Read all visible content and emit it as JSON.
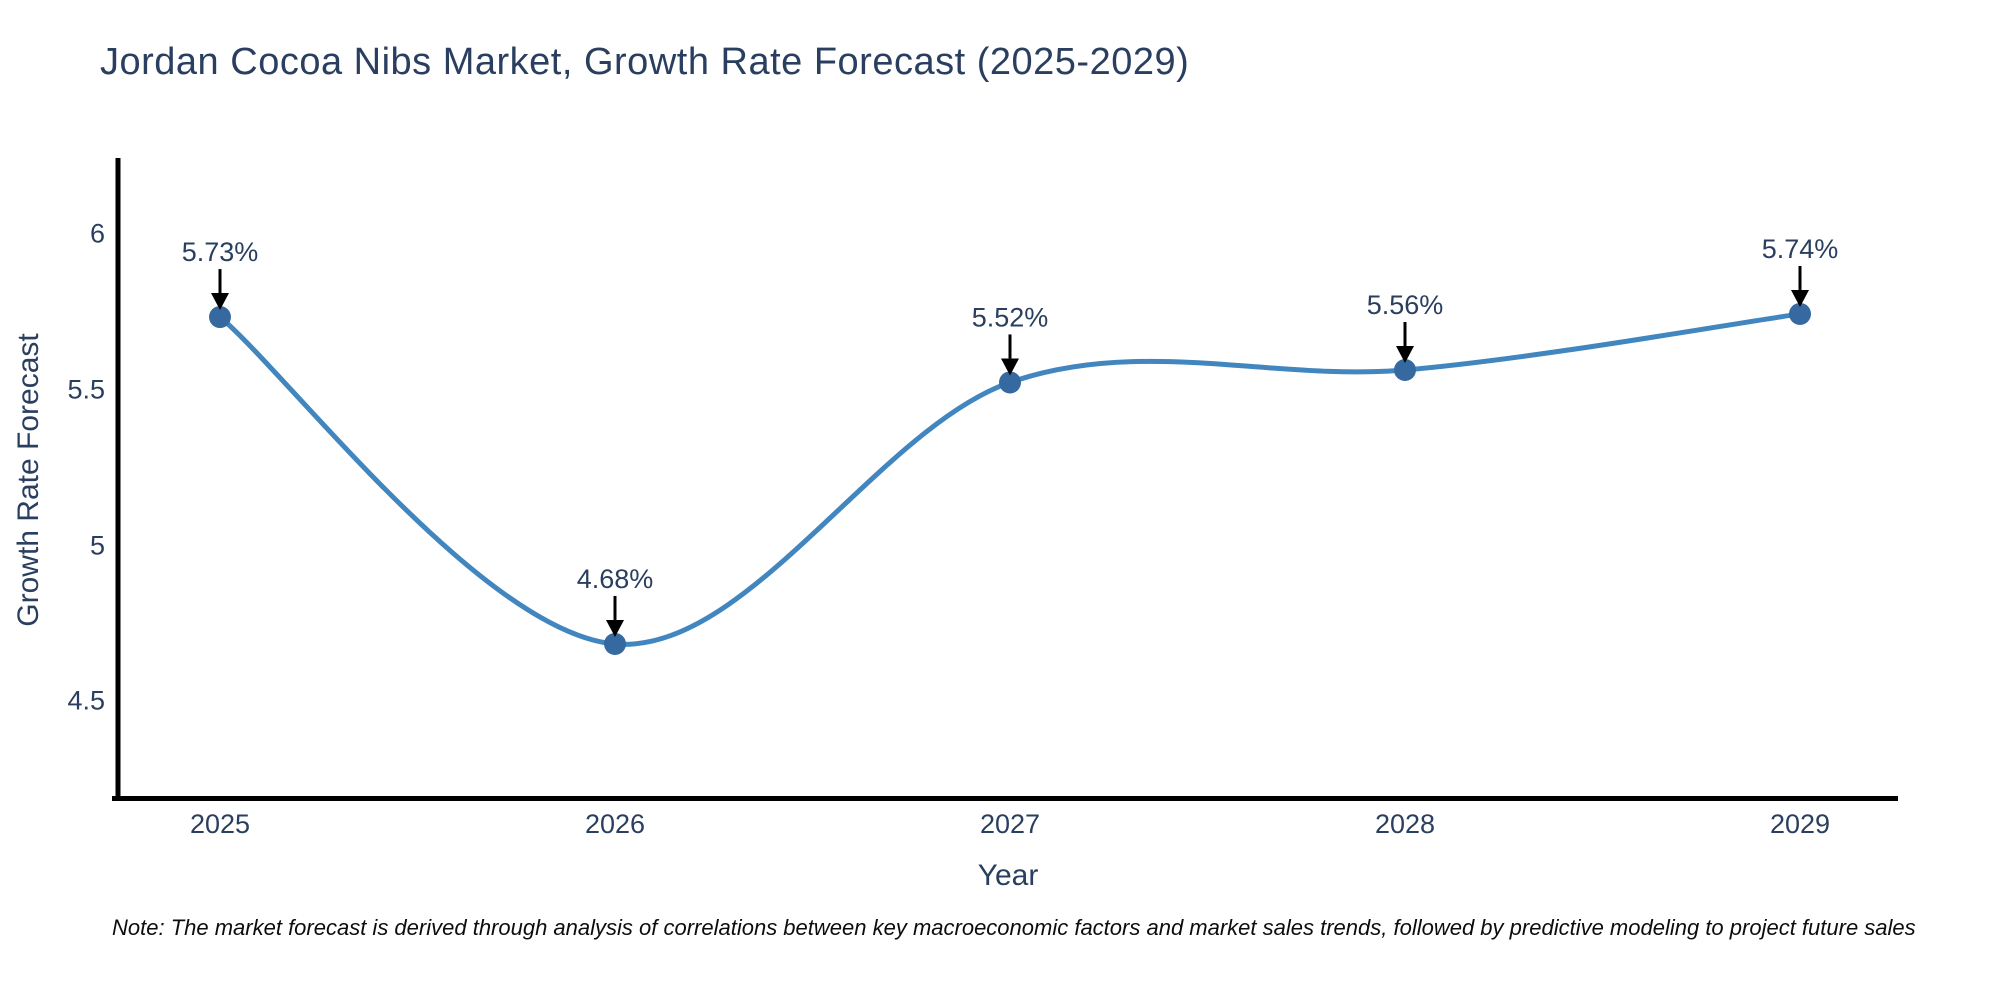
{
  "chart_data": {
    "type": "line",
    "line_shape": "spline",
    "title": "Jordan Cocoa Nibs Market, Growth Rate Forecast (2025-2029)",
    "xlabel": "Year",
    "ylabel": "Growth Rate Forecast",
    "categories": [
      "2025",
      "2026",
      "2027",
      "2028",
      "2029"
    ],
    "values": [
      5.73,
      4.68,
      5.52,
      5.56,
      5.74
    ],
    "point_labels": [
      "5.73%",
      "4.68%",
      "5.52%",
      "5.56%",
      "5.74%"
    ],
    "yticks": [
      6,
      5.5,
      5,
      4.5
    ],
    "ytick_labels": [
      "6",
      "5.5",
      "5",
      "4.5"
    ],
    "ylim": [
      4.17,
      6.24
    ],
    "grid": false,
    "legend": "none",
    "colors": {
      "line": "#4286c0",
      "marker": "#36699f",
      "arrow": "#000000",
      "text": "#2a3f5f",
      "axis": "#000000"
    },
    "note": "Note: The market forecast is derived through analysis of correlations between key macroeconomic factors and market sales trends, followed by predictive modeling to project future sales"
  }
}
